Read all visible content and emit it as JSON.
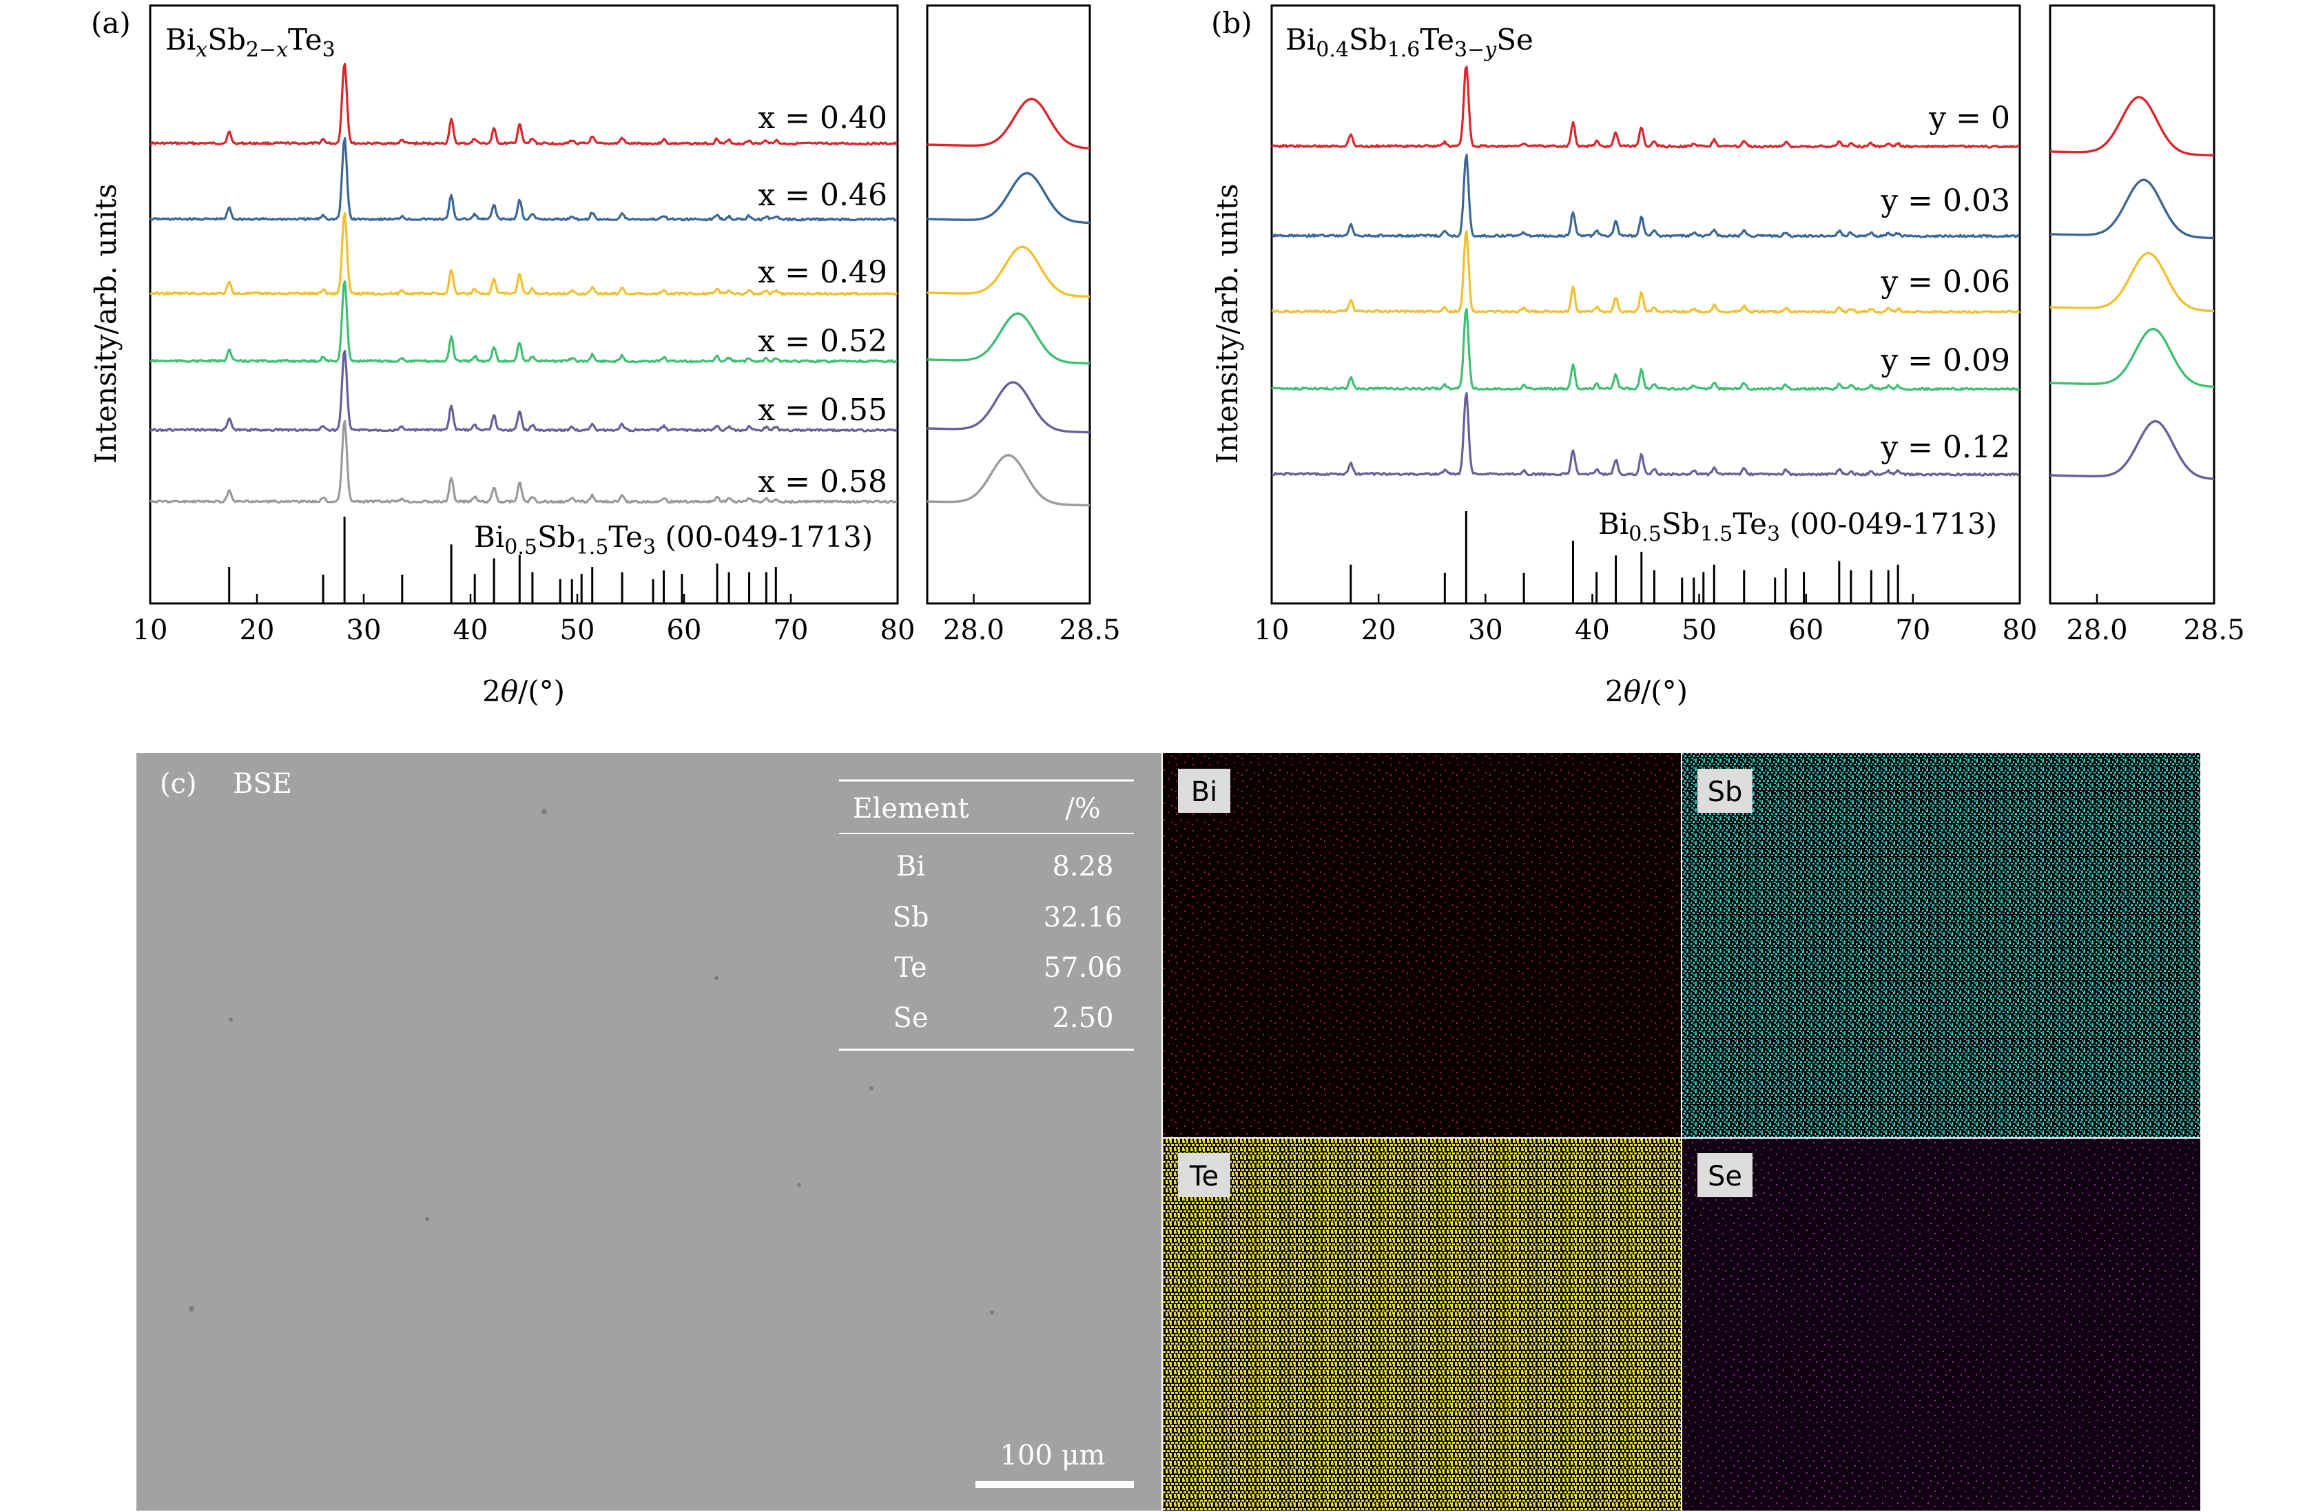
{
  "figure": {
    "colors": [
      "#d9262b",
      "#3a6795",
      "#f2bf2e",
      "#3fbf72",
      "#66609a",
      "#9a9a9a"
    ]
  },
  "chart_data": [
    {
      "type": "line",
      "panel": "(a)",
      "title": "BixSb2−xTe3",
      "ylabel": "Intensity/arb. units",
      "xlabel": "2θ/(°)",
      "xlim": [
        10,
        80
      ],
      "x_ticks": [
        "10",
        "20",
        "30",
        "40",
        "50",
        "60",
        "70",
        "80"
      ],
      "zoom_xlim": [
        27.8,
        28.5
      ],
      "zoom_ticks": [
        "28.0",
        "28.5"
      ],
      "series": [
        {
          "name": "x = 0.40",
          "color": "#d9262b",
          "peak_position": 28.25
        },
        {
          "name": "x = 0.46",
          "color": "#3a6795",
          "peak_position": 28.23
        },
        {
          "name": "x = 0.49",
          "color": "#f2bf2e",
          "peak_position": 28.21
        },
        {
          "name": "x = 0.52",
          "color": "#3fbf72",
          "peak_position": 28.19
        },
        {
          "name": "x = 0.55",
          "color": "#66609a",
          "peak_position": 28.17
        },
        {
          "name": "x = 0.58",
          "color": "#9a9a9a",
          "peak_position": 28.15
        }
      ],
      "reference": {
        "label": "Bi0.5Sb1.5Te3 (00-049-1713)",
        "peaks": [
          {
            "x": 17.4,
            "rel": 0.42
          },
          {
            "x": 26.2,
            "rel": 0.33
          },
          {
            "x": 28.2,
            "rel": 1.0
          },
          {
            "x": 33.6,
            "rel": 0.33
          },
          {
            "x": 38.2,
            "rel": 0.68
          },
          {
            "x": 40.4,
            "rel": 0.34
          },
          {
            "x": 42.2,
            "rel": 0.52
          },
          {
            "x": 44.6,
            "rel": 0.56
          },
          {
            "x": 45.8,
            "rel": 0.36
          },
          {
            "x": 48.4,
            "rel": 0.28
          },
          {
            "x": 49.5,
            "rel": 0.28
          },
          {
            "x": 50.4,
            "rel": 0.34
          },
          {
            "x": 51.4,
            "rel": 0.42
          },
          {
            "x": 54.2,
            "rel": 0.36
          },
          {
            "x": 57.1,
            "rel": 0.28
          },
          {
            "x": 58.1,
            "rel": 0.38
          },
          {
            "x": 59.8,
            "rel": 0.34
          },
          {
            "x": 63.1,
            "rel": 0.46
          },
          {
            "x": 64.2,
            "rel": 0.36
          },
          {
            "x": 66.1,
            "rel": 0.36
          },
          {
            "x": 67.7,
            "rel": 0.36
          },
          {
            "x": 68.6,
            "rel": 0.42
          }
        ]
      }
    },
    {
      "type": "line",
      "panel": "(b)",
      "title": "Bi0.4Sb1.6Te3−ySe",
      "ylabel": "Intensity/arb. units",
      "xlabel": "2θ/(°)",
      "xlim": [
        10,
        80
      ],
      "x_ticks": [
        "10",
        "20",
        "30",
        "40",
        "50",
        "60",
        "70",
        "80"
      ],
      "zoom_xlim": [
        27.8,
        28.5
      ],
      "zoom_ticks": [
        "28.0",
        "28.5"
      ],
      "series": [
        {
          "name": "y = 0",
          "color": "#d9262b",
          "peak_position": 28.18
        },
        {
          "name": "y = 0.03",
          "color": "#3a6795",
          "peak_position": 28.2
        },
        {
          "name": "y = 0.06",
          "color": "#f2bf2e",
          "peak_position": 28.22
        },
        {
          "name": "y = 0.09",
          "color": "#3fbf72",
          "peak_position": 28.24
        },
        {
          "name": "y = 0.12",
          "color": "#66609a",
          "peak_position": 28.25
        }
      ],
      "reference": {
        "label": "Bi0.5Sb1.5Te3 (00-049-1713)",
        "peaks": [
          {
            "x": 17.4,
            "rel": 0.42
          },
          {
            "x": 26.2,
            "rel": 0.33
          },
          {
            "x": 28.2,
            "rel": 1.0
          },
          {
            "x": 33.6,
            "rel": 0.33
          },
          {
            "x": 38.2,
            "rel": 0.68
          },
          {
            "x": 40.4,
            "rel": 0.34
          },
          {
            "x": 42.2,
            "rel": 0.52
          },
          {
            "x": 44.6,
            "rel": 0.56
          },
          {
            "x": 45.8,
            "rel": 0.36
          },
          {
            "x": 48.4,
            "rel": 0.28
          },
          {
            "x": 49.5,
            "rel": 0.28
          },
          {
            "x": 50.4,
            "rel": 0.34
          },
          {
            "x": 51.4,
            "rel": 0.42
          },
          {
            "x": 54.2,
            "rel": 0.36
          },
          {
            "x": 57.1,
            "rel": 0.28
          },
          {
            "x": 58.1,
            "rel": 0.38
          },
          {
            "x": 59.8,
            "rel": 0.34
          },
          {
            "x": 63.1,
            "rel": 0.46
          },
          {
            "x": 64.2,
            "rel": 0.36
          },
          {
            "x": 66.1,
            "rel": 0.36
          },
          {
            "x": 67.7,
            "rel": 0.36
          },
          {
            "x": 68.6,
            "rel": 0.42
          }
        ]
      }
    },
    {
      "type": "table",
      "panel": "(c)",
      "title": "BSE",
      "columns": [
        "Element",
        "/%"
      ],
      "rows": [
        [
          "Bi",
          "8.28"
        ],
        [
          "Sb",
          "32.16"
        ],
        [
          "Te",
          "57.06"
        ],
        [
          "Se",
          "2.50"
        ]
      ],
      "scale_bar": "100 μm",
      "eds_maps": [
        {
          "element": "Bi",
          "color": "#b3202a",
          "background": "#0a0000"
        },
        {
          "element": "Sb",
          "color": "#2ec8c8",
          "background": "#000000"
        },
        {
          "element": "Te",
          "color": "#e6dd2c",
          "background": "#000000"
        },
        {
          "element": "Se",
          "color": "#9b2ea8",
          "background": "#100012"
        }
      ]
    }
  ]
}
